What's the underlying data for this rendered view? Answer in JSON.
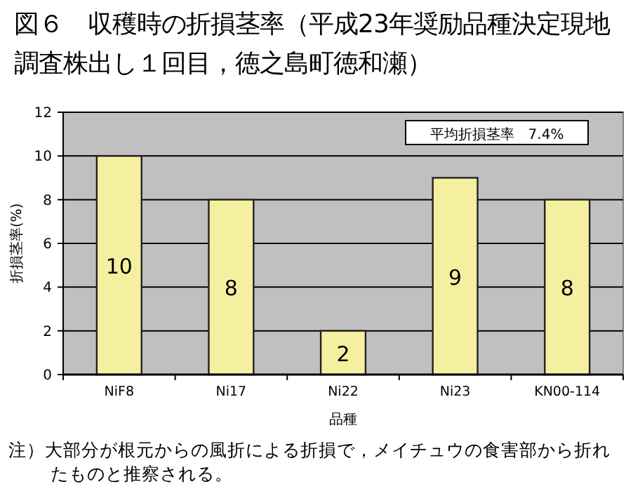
{
  "chart_data": {
    "type": "bar",
    "title": "図６　収穫時の折損茎率（平成23年奨励品種決定現地調査株出し１回目，徳之島町徳和瀬）",
    "xlabel": "品種",
    "ylabel": "折損茎率(%)",
    "categories": [
      "NiF8",
      "Ni17",
      "Ni22",
      "Ni23",
      "KN00-114"
    ],
    "values": [
      10,
      8,
      2,
      9,
      8
    ],
    "color": "#f5f0a0",
    "data_labels": true,
    "ylim": [
      0,
      12
    ],
    "yticks": [
      0,
      2,
      4,
      6,
      8,
      10,
      12
    ],
    "grid": "y",
    "annotations": [
      "平均折損茎率　7.4%",
      "注）大部分が根元からの風折による折損で，メイチュウの食害部から折れたものと推察される。"
    ]
  }
}
